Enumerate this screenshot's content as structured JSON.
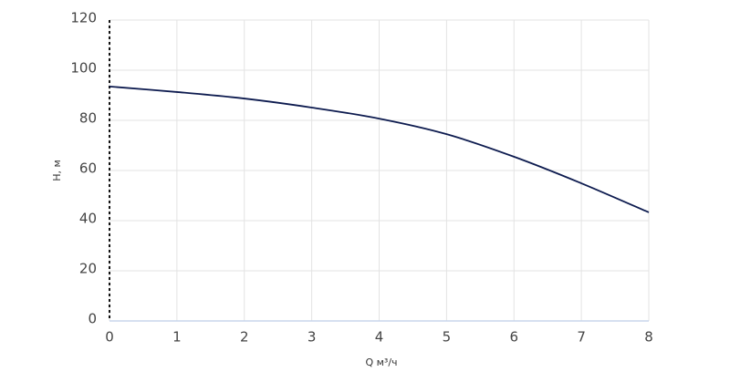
{
  "chart_data": {
    "type": "line",
    "x_label": "Q м³/ч",
    "y_label": "H, м",
    "x": [
      0,
      1,
      2,
      3,
      4,
      5,
      6,
      7,
      8
    ],
    "values": [
      93.5,
      91.3,
      88.7,
      85.1,
      80.7,
      74.5,
      65.5,
      54.9,
      43.3
    ],
    "color": "#0d1b4f",
    "xlim": [
      0,
      8
    ],
    "xticks": [
      0,
      1,
      2,
      3,
      4,
      5,
      6,
      7,
      8
    ],
    "ylim": [
      0,
      120
    ],
    "yticks": [
      0,
      20,
      40,
      60,
      80,
      100,
      120
    ],
    "grid": true
  }
}
